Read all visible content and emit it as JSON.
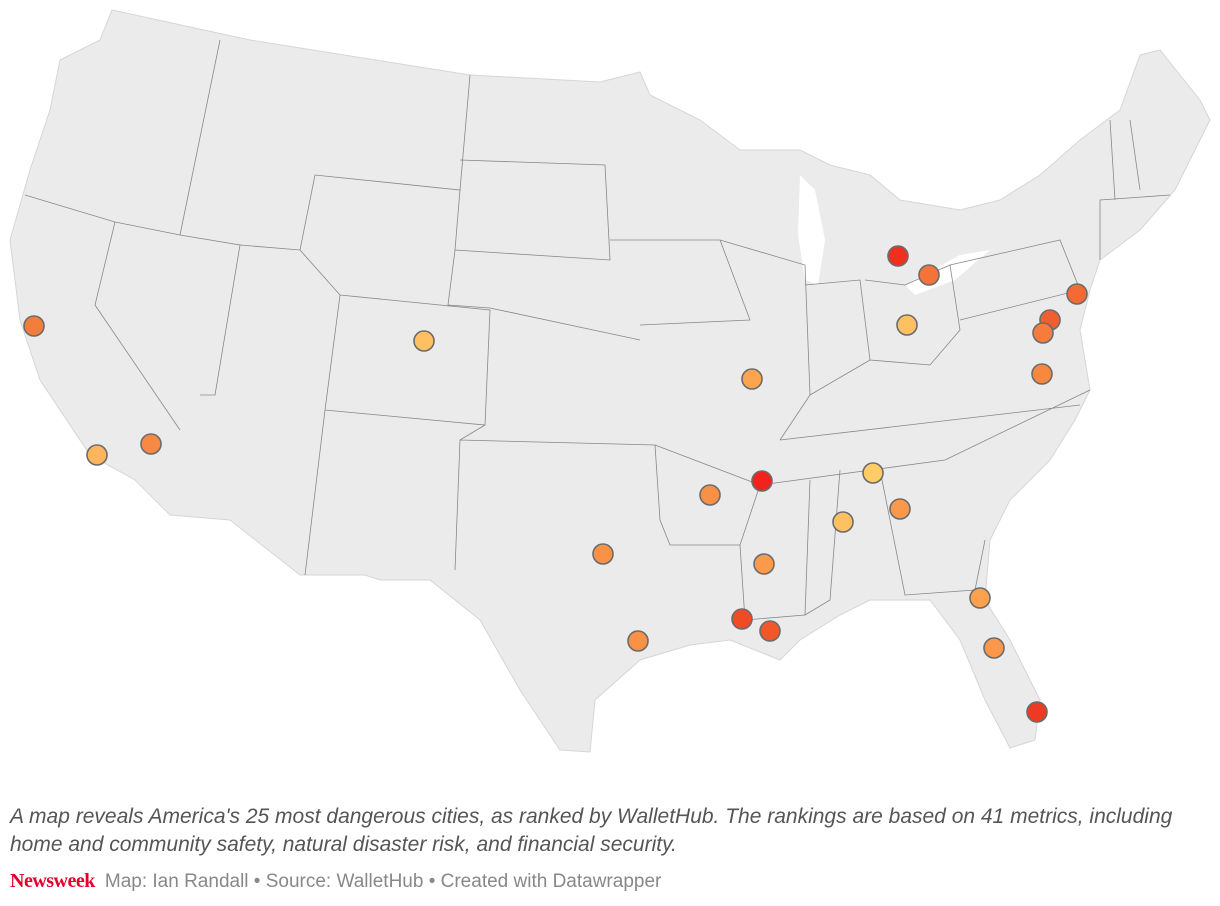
{
  "caption": "A map reveals America's 25 most dangerous cities, as ranked by WalletHub. The rankings are based on 41 metrics, including home and community safety, natural disaster risk, and financial security.",
  "footer": {
    "brand": "Newsweek",
    "credit": "Map: Ian Randall • Source: WalletHub • Created with Datawrapper"
  }
}
